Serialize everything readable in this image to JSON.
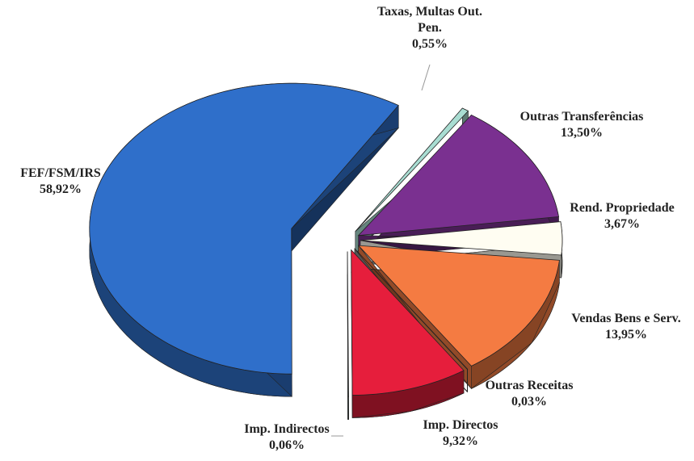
{
  "chart_data": {
    "type": "pie",
    "categories": [
      "Taxas, Multas Out. Pen.",
      "Outras Transferências",
      "Rend. Propriedade",
      "Vendas Bens e Serv.",
      "Outras Receitas",
      "Imp. Directos",
      "Imp. Indirectos",
      "FEF/FSM/IRS"
    ],
    "values": [
      0.55,
      13.5,
      3.67,
      13.95,
      0.03,
      9.32,
      0.06,
      58.92
    ],
    "value_labels": [
      "0,55%",
      "13,50%",
      "3,67%",
      "13,95%",
      "0,03%",
      "9,32%",
      "0,06%",
      "58,92%"
    ],
    "colors": [
      "#a9ddd2",
      "#7a3090",
      "#fffdf2",
      "#f47b42",
      "#8c8c8c",
      "#e61e3c",
      "#27473a",
      "#2f6fca"
    ]
  }
}
